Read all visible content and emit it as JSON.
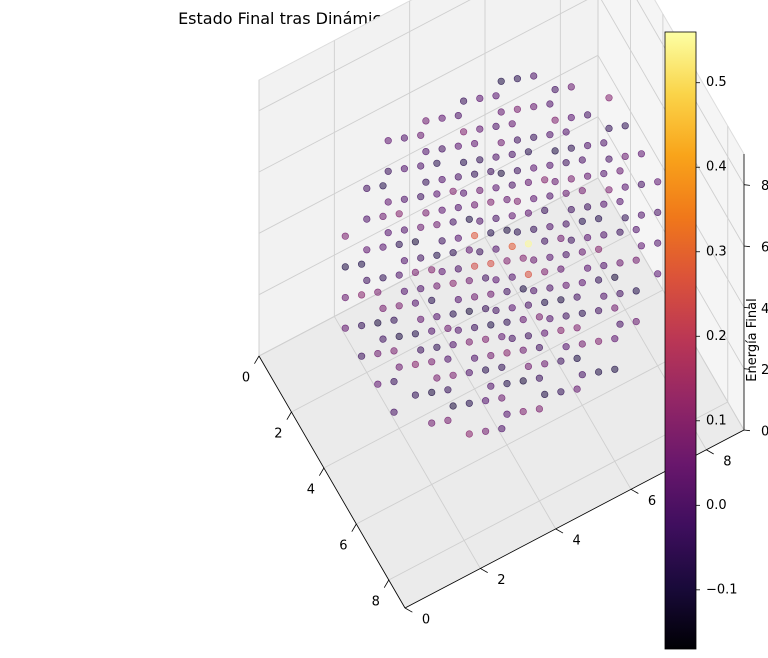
{
  "chart_data": {
    "type": "scatter3d",
    "title": "Estado Final tras Dinámica Térmica",
    "xlabel": "",
    "ylabel": "",
    "zlabel": "",
    "xlim": [
      0,
      9
    ],
    "ylim": [
      0,
      9
    ],
    "zlim": [
      0,
      9
    ],
    "x_ticks": [
      0,
      2,
      4,
      6,
      8
    ],
    "y_ticks": [
      0,
      2,
      4,
      6,
      8
    ],
    "z_ticks": [
      0,
      2,
      4,
      6,
      8
    ],
    "x_tick_labels": [
      "0",
      "2",
      "4",
      "6",
      "8"
    ],
    "y_tick_labels": [
      "0",
      "2",
      "4",
      "6",
      "8"
    ],
    "z_tick_labels": [
      "0",
      "2",
      "4",
      "6",
      "8"
    ],
    "grid": true,
    "colormap": "inferno",
    "colorbar": {
      "label": "Energía Final",
      "min": -0.17,
      "max": 0.56,
      "ticks": [
        -0.1,
        0.0,
        0.1,
        0.2,
        0.3,
        0.4,
        0.5
      ],
      "tick_labels": [
        "−0.1",
        "0.0",
        "0.1",
        "0.2",
        "0.3",
        "0.4",
        "0.5"
      ]
    },
    "points_description": "Regular lattice of points forming a sphere of radius ~4 centered at (4.5, 4.5, 4.5); energies mostly between -0.12 and 0.12 with a few hot points (~0.25-0.5) near the center.",
    "grid_step": 1,
    "center": [
      4.5,
      4.5,
      4.5
    ],
    "radius": 4.2,
    "hot_points": [
      {
        "x": 4,
        "y": 4,
        "z": 5,
        "energy": 0.27
      },
      {
        "x": 5,
        "y": 4,
        "z": 5,
        "energy": 0.25
      },
      {
        "x": 4,
        "y": 5,
        "z": 4,
        "energy": 0.28
      },
      {
        "x": 5,
        "y": 5,
        "z": 4,
        "energy": 0.26
      },
      {
        "x": 4,
        "y": 4,
        "z": 4,
        "energy": 0.24
      },
      {
        "x": 5,
        "y": 5,
        "z": 5,
        "energy": 0.55
      }
    ]
  }
}
